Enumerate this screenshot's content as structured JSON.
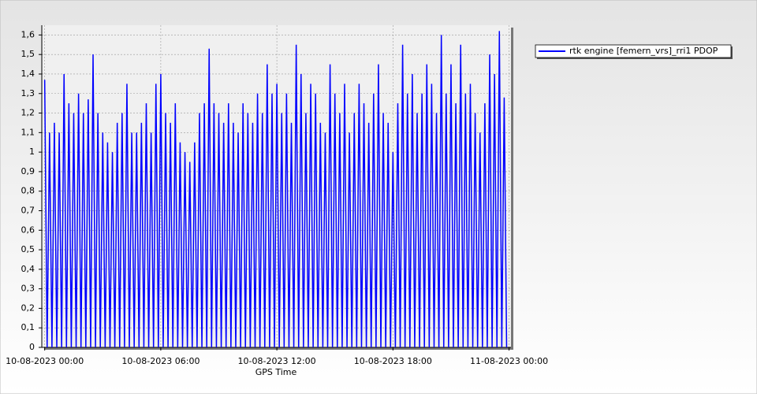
{
  "chart_data": {
    "type": "line",
    "x_label": "GPS Time",
    "xlim": [
      -0.15,
      24.1
    ],
    "ylim": [
      0,
      1.65
    ],
    "xticks": [
      {
        "value": 0,
        "label": "10-08-2023 00:00"
      },
      {
        "value": 6,
        "label": "10-08-2023 06:00"
      },
      {
        "value": 12,
        "label": "10-08-2023 12:00"
      },
      {
        "value": 18,
        "label": "10-08-2023 18:00"
      },
      {
        "value": 24,
        "label": "11-08-2023 00:00"
      }
    ],
    "yticks": [
      0,
      {
        "value": 0.1,
        "label": "0,1"
      },
      {
        "value": 0.2,
        "label": "0,2"
      },
      {
        "value": 0.3,
        "label": "0,3"
      },
      {
        "value": 0.4,
        "label": "0,4"
      },
      {
        "value": 0.5,
        "label": "0,5"
      },
      {
        "value": 0.6,
        "label": "0,6"
      },
      {
        "value": 0.7,
        "label": "0,7"
      },
      {
        "value": 0.8,
        "label": "0,8"
      },
      {
        "value": 0.9,
        "label": "0,9"
      },
      1,
      {
        "value": 1.1,
        "label": "1,1"
      },
      {
        "value": 1.2,
        "label": "1,2"
      },
      {
        "value": 1.3,
        "label": "1,3"
      },
      {
        "value": 1.4,
        "label": "1,4"
      },
      {
        "value": 1.5,
        "label": "1,5"
      },
      {
        "value": 1.6,
        "label": "1,6"
      }
    ],
    "grid": true,
    "legend": "top-right",
    "x": [
      0,
      0.125,
      0.25,
      0.375,
      0.5,
      0.625,
      0.75,
      0.875,
      1,
      1.125,
      1.25,
      1.375,
      1.5,
      1.625,
      1.75,
      1.875,
      2,
      2.125,
      2.25,
      2.375,
      2.5,
      2.625,
      2.75,
      2.875,
      3,
      3.125,
      3.25,
      3.375,
      3.5,
      3.625,
      3.75,
      3.875,
      4,
      4.125,
      4.25,
      4.375,
      4.5,
      4.625,
      4.75,
      4.875,
      5,
      5.125,
      5.25,
      5.375,
      5.5,
      5.625,
      5.75,
      5.875,
      6,
      6.125,
      6.25,
      6.375,
      6.5,
      6.625,
      6.75,
      6.875,
      7,
      7.125,
      7.25,
      7.375,
      7.5,
      7.625,
      7.75,
      7.875,
      8,
      8.125,
      8.25,
      8.375,
      8.5,
      8.625,
      8.75,
      8.875,
      9,
      9.125,
      9.25,
      9.375,
      9.5,
      9.625,
      9.75,
      9.875,
      10,
      10.125,
      10.25,
      10.375,
      10.5,
      10.625,
      10.75,
      10.875,
      11,
      11.125,
      11.25,
      11.375,
      11.5,
      11.625,
      11.75,
      11.875,
      12,
      12.125,
      12.25,
      12.375,
      12.5,
      12.625,
      12.75,
      12.875,
      13,
      13.125,
      13.25,
      13.375,
      13.5,
      13.625,
      13.75,
      13.875,
      14,
      14.125,
      14.25,
      14.375,
      14.5,
      14.625,
      14.75,
      14.875,
      15,
      15.125,
      15.25,
      15.375,
      15.5,
      15.625,
      15.75,
      15.875,
      16,
      16.125,
      16.25,
      16.375,
      16.5,
      16.625,
      16.75,
      16.875,
      17,
      17.125,
      17.25,
      17.375,
      17.5,
      17.625,
      17.75,
      17.875,
      18,
      18.125,
      18.25,
      18.375,
      18.5,
      18.625,
      18.75,
      18.875,
      19,
      19.125,
      19.25,
      19.375,
      19.5,
      19.625,
      19.75,
      19.875,
      20,
      20.125,
      20.25,
      20.375,
      20.5,
      20.625,
      20.75,
      20.875,
      21,
      21.125,
      21.25,
      21.375,
      21.5,
      21.625,
      21.75,
      21.875,
      22,
      22.125,
      22.25,
      22.375,
      22.5,
      22.625,
      22.75,
      22.875,
      23,
      23.125,
      23.25,
      23.375,
      23.5,
      23.625,
      23.75,
      23.875
    ],
    "series": [
      {
        "name": "rtk engine [femern_vrs]_rri1 PDOP",
        "color": "#0000ff",
        "values": [
          1.37,
          0,
          1.1,
          0,
          1.15,
          0,
          1.1,
          0,
          1.4,
          0,
          1.25,
          0,
          1.2,
          0,
          1.3,
          0,
          1.2,
          0,
          1.27,
          0,
          1.5,
          0,
          1.2,
          0,
          1.1,
          0,
          1.05,
          0,
          1.0,
          0,
          1.15,
          0,
          1.2,
          0,
          1.35,
          0,
          1.1,
          0,
          1.1,
          0,
          1.15,
          0,
          1.25,
          0,
          1.1,
          0,
          1.35,
          0,
          1.4,
          0,
          1.2,
          0,
          1.15,
          0,
          1.25,
          0,
          1.05,
          0,
          1.0,
          0,
          0.95,
          0,
          1.05,
          0,
          1.2,
          0,
          1.25,
          0,
          1.53,
          0,
          1.25,
          0,
          1.2,
          0,
          1.15,
          0,
          1.25,
          0,
          1.15,
          0,
          1.1,
          0,
          1.25,
          0,
          1.2,
          0,
          1.15,
          0,
          1.3,
          0,
          1.2,
          0,
          1.45,
          0,
          1.3,
          0,
          1.35,
          0,
          1.2,
          0,
          1.3,
          0,
          1.15,
          0,
          1.55,
          0,
          1.4,
          0,
          1.2,
          0,
          1.35,
          0,
          1.3,
          0,
          1.15,
          0,
          1.1,
          0,
          1.45,
          0,
          1.3,
          0,
          1.2,
          0,
          1.35,
          0,
          1.1,
          0,
          1.2,
          0,
          1.35,
          0,
          1.25,
          0,
          1.15,
          0,
          1.3,
          0,
          1.45,
          0,
          1.2,
          0,
          1.15,
          0,
          1.0,
          0,
          1.25,
          0,
          1.55,
          0,
          1.3,
          0,
          1.4,
          0,
          1.2,
          0,
          1.3,
          0,
          1.45,
          0,
          1.35,
          0,
          1.2,
          0,
          1.6,
          0,
          1.3,
          0,
          1.45,
          0,
          1.25,
          0,
          1.55,
          0,
          1.3,
          0,
          1.35,
          0,
          1.2,
          0,
          1.1,
          0,
          1.25,
          0,
          1.5,
          0,
          1.4,
          0,
          1.62,
          0,
          1.28,
          0
        ]
      }
    ]
  }
}
